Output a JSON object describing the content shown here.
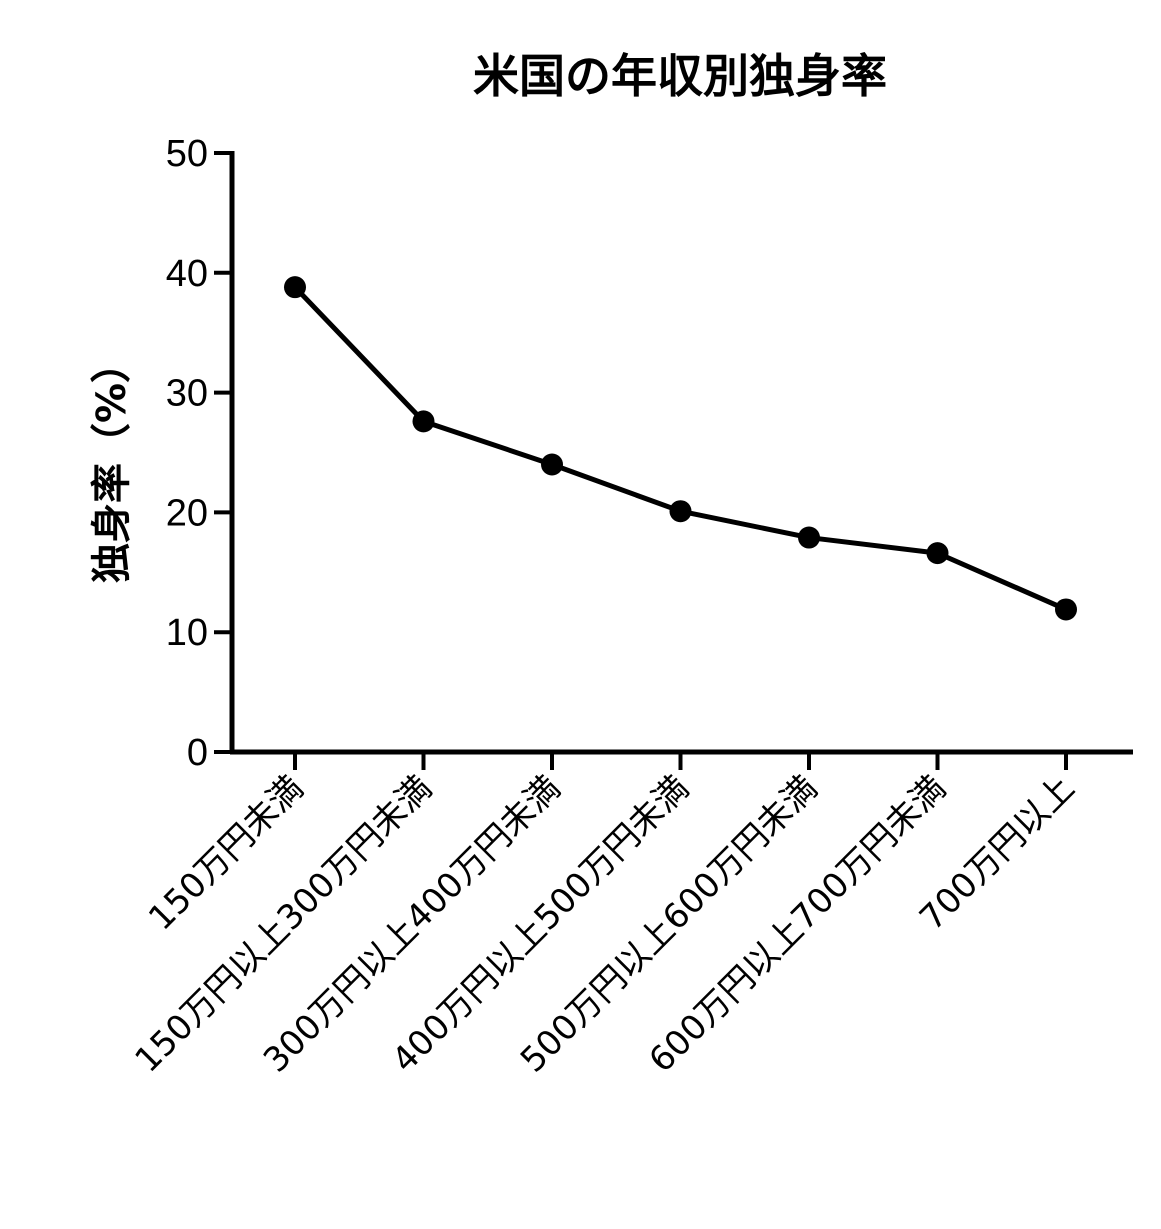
{
  "chart_data": {
    "type": "line",
    "title": "米国の年収別独身率",
    "xlabel": "",
    "ylabel": "独身率（%）",
    "categories": [
      "150万円未満",
      "150万円以上300万円未満",
      "300万円以上400万円未満",
      "400万円以上500万円未満",
      "500万円以上600万円未満",
      "600万円以上700万円未満",
      "700万円以上"
    ],
    "series": [
      {
        "values": [
          38.8,
          27.6,
          24.0,
          20.1,
          17.9,
          16.6,
          11.9
        ]
      }
    ],
    "ylim": [
      0,
      50
    ],
    "yticks": [
      "0",
      "10",
      "20",
      "30",
      "40",
      "50"
    ],
    "grid": false,
    "legend": "none",
    "colors": {
      "line": "#000000",
      "marker": "#000000",
      "axis": "#000000"
    }
  }
}
